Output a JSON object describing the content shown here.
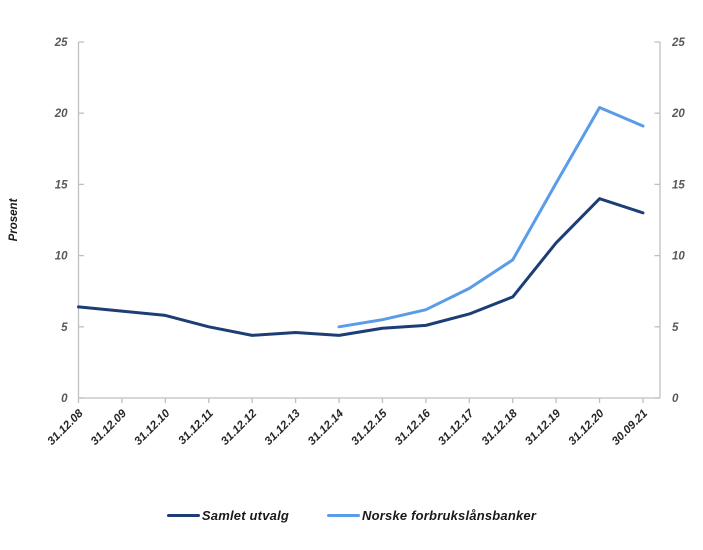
{
  "figure": {
    "ylabel": "Prosent",
    "axis_color": "#bfbfbf",
    "ytick_label_color": "#595959",
    "xtick_label_color": "#262626",
    "background": "#ffffff"
  },
  "chart_data": {
    "type": "line",
    "title": "",
    "xlabel": "",
    "ylabel": "Prosent",
    "ylim": [
      0,
      25
    ],
    "yticks": [
      0,
      5,
      10,
      15,
      20,
      25
    ],
    "grid": false,
    "legend_position": "bottom",
    "dual_y_axis": true,
    "categories": [
      "31.12.08",
      "31.12.09",
      "31.12.10",
      "31.12.11",
      "31.12.12",
      "31.12.13",
      "31.12.14",
      "31.12.15",
      "31.12.16",
      "31.12.17",
      "31.12.18",
      "31.12.19",
      "31.12.20",
      "30.09.21"
    ],
    "series": [
      {
        "name": "Samlet utvalg",
        "color": "#1c3e75",
        "values": [
          6.4,
          6.1,
          5.8,
          5.0,
          4.4,
          4.6,
          4.4,
          4.9,
          5.1,
          5.9,
          7.1,
          10.9,
          14.0,
          13.0
        ]
      },
      {
        "name": "Norske forbrukslånsbanker",
        "color": "#5a9bea",
        "values": [
          null,
          null,
          null,
          null,
          null,
          null,
          5.0,
          5.5,
          6.2,
          7.7,
          9.7,
          15.1,
          20.4,
          19.1
        ]
      }
    ]
  }
}
